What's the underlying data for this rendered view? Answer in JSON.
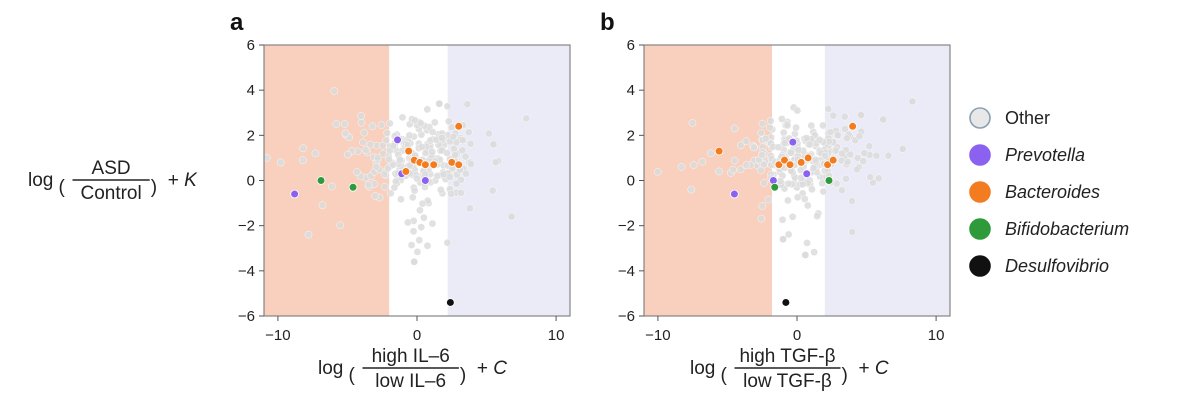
{
  "chart_data": [
    {
      "panel": "a",
      "type": "scatter",
      "xlim": [
        -11,
        11
      ],
      "ylim": [
        -6,
        6
      ],
      "xticks": [
        "-10",
        "0",
        "10"
      ],
      "yticks": [
        "6",
        "4",
        "2",
        "0",
        "−2",
        "−4",
        "−6"
      ],
      "xtick_values": [
        -10,
        0,
        10
      ],
      "ytick_values": [
        6,
        4,
        2,
        0,
        -2,
        -4,
        -6
      ],
      "xlabel": {
        "prefix": "log",
        "numerator": "high IL–6",
        "denominator": "low IL–6",
        "suffix": "+ ",
        "constant": "C"
      },
      "ylabel": {
        "prefix": "log",
        "numerator": "ASD",
        "denominator": "Control",
        "suffix": "+ ",
        "constant": "K"
      },
      "bands": [
        {
          "from": -11,
          "to": -2,
          "color": "#f9cfbd"
        },
        {
          "from": 2.2,
          "to": 11,
          "color": "#ebebf7"
        }
      ],
      "series": [
        {
          "name": "Prevotella",
          "color": "#8b62f0",
          "points": [
            [
              -8.8,
              -0.6
            ],
            [
              -1.4,
              1.8
            ],
            [
              -1.1,
              0.3
            ],
            [
              0.6,
              0.0
            ]
          ]
        },
        {
          "name": "Bacteroides",
          "color": "#f47c20",
          "points": [
            [
              -0.8,
              0.4
            ],
            [
              -0.6,
              1.3
            ],
            [
              -0.2,
              0.9
            ],
            [
              0.2,
              0.8
            ],
            [
              0.6,
              0.7
            ],
            [
              1.2,
              0.7
            ],
            [
              2.5,
              0.8
            ],
            [
              3.0,
              0.7
            ],
            [
              3.0,
              2.4
            ]
          ]
        },
        {
          "name": "Bifidobacterium",
          "color": "#2e9a3a",
          "points": [
            [
              -6.9,
              0.0
            ],
            [
              -4.6,
              -0.3
            ]
          ]
        },
        {
          "name": "Desulfovibrio",
          "color": "#111111",
          "points": [
            [
              2.4,
              -5.4
            ]
          ]
        }
      ]
    },
    {
      "panel": "b",
      "type": "scatter",
      "xlim": [
        -11,
        11
      ],
      "ylim": [
        -6,
        6
      ],
      "xticks": [
        "-10",
        "0",
        "10"
      ],
      "yticks": [
        "6",
        "4",
        "2",
        "0",
        "−2",
        "−4",
        "−6"
      ],
      "xtick_values": [
        -10,
        0,
        10
      ],
      "ytick_values": [
        6,
        4,
        2,
        0,
        -2,
        -4,
        -6
      ],
      "xlabel": {
        "prefix": "log",
        "numerator": "high TGF-β",
        "denominator": "low TGF-β",
        "suffix": "+ ",
        "constant": "C"
      },
      "bands": [
        {
          "from": -11,
          "to": -1.8,
          "color": "#f9cfbd"
        },
        {
          "from": 2.0,
          "to": 11,
          "color": "#ebebf7"
        }
      ],
      "series": [
        {
          "name": "Prevotella",
          "color": "#8b62f0",
          "points": [
            [
              -4.5,
              -0.6
            ],
            [
              -1.7,
              0.0
            ],
            [
              -0.3,
              1.7
            ],
            [
              0.7,
              0.3
            ]
          ]
        },
        {
          "name": "Bacteroides",
          "color": "#f47c20",
          "points": [
            [
              -5.6,
              1.3
            ],
            [
              -1.3,
              0.7
            ],
            [
              -0.9,
              0.9
            ],
            [
              -0.5,
              0.7
            ],
            [
              0.3,
              0.8
            ],
            [
              0.8,
              1.0
            ],
            [
              2.2,
              0.7
            ],
            [
              2.6,
              0.9
            ],
            [
              4.0,
              2.4
            ]
          ]
        },
        {
          "name": "Bifidobacterium",
          "color": "#2e9a3a",
          "points": [
            [
              -1.6,
              -0.3
            ],
            [
              2.3,
              -0.0
            ]
          ]
        },
        {
          "name": "Desulfovibrio",
          "color": "#111111",
          "points": [
            [
              -0.8,
              -5.4
            ]
          ]
        }
      ]
    }
  ],
  "legend": [
    {
      "label": "Other",
      "color": "#e8e8e8",
      "stroke": "#8aa0b4",
      "italic": false
    },
    {
      "label": "Prevotella",
      "color": "#8b62f0",
      "stroke": "#8b62f0",
      "italic": true
    },
    {
      "label": "Bacteroides",
      "color": "#f47c20",
      "stroke": "#f47c20",
      "italic": true
    },
    {
      "label": "Bifidobacterium",
      "color": "#2e9a3a",
      "stroke": "#2e9a3a",
      "italic": true
    },
    {
      "label": "Desulfovibrio",
      "color": "#111111",
      "stroke": "#111111",
      "italic": true
    }
  ]
}
